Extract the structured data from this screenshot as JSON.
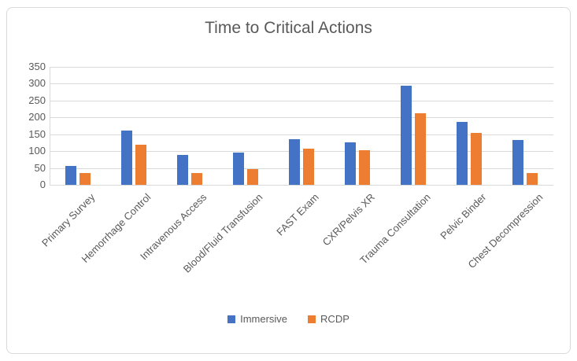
{
  "chart_data": {
    "type": "bar",
    "title": "Time to Critical Actions",
    "categories": [
      "Primary Survey",
      "Hemorrhage Control",
      "Intravenous Access",
      "Blood/Fluid Transfusion",
      "FAST Exam",
      "CXR/Pelvis XR",
      "Trauma Consultation",
      "Pelvic Binder",
      "Chest Decompression"
    ],
    "series": [
      {
        "name": "Immersive",
        "color": "#4472C4",
        "values": [
          57,
          160,
          88,
          95,
          135,
          126,
          294,
          186,
          132
        ]
      },
      {
        "name": "RCDP",
        "color": "#ED7D31",
        "values": [
          35,
          118,
          36,
          47,
          108,
          102,
          213,
          153,
          36
        ]
      }
    ],
    "xlabel": "",
    "ylabel": "",
    "ylim": [
      0,
      350
    ],
    "ytick_step": 50,
    "yticks": [
      0,
      50,
      100,
      150,
      200,
      250,
      300,
      350
    ],
    "grid": true,
    "legend_position": "bottom"
  },
  "colors": {
    "text": "#595959",
    "gridline": "#D9D9D9",
    "frame_border": "#D9D9D9",
    "background": "#FFFFFF"
  }
}
